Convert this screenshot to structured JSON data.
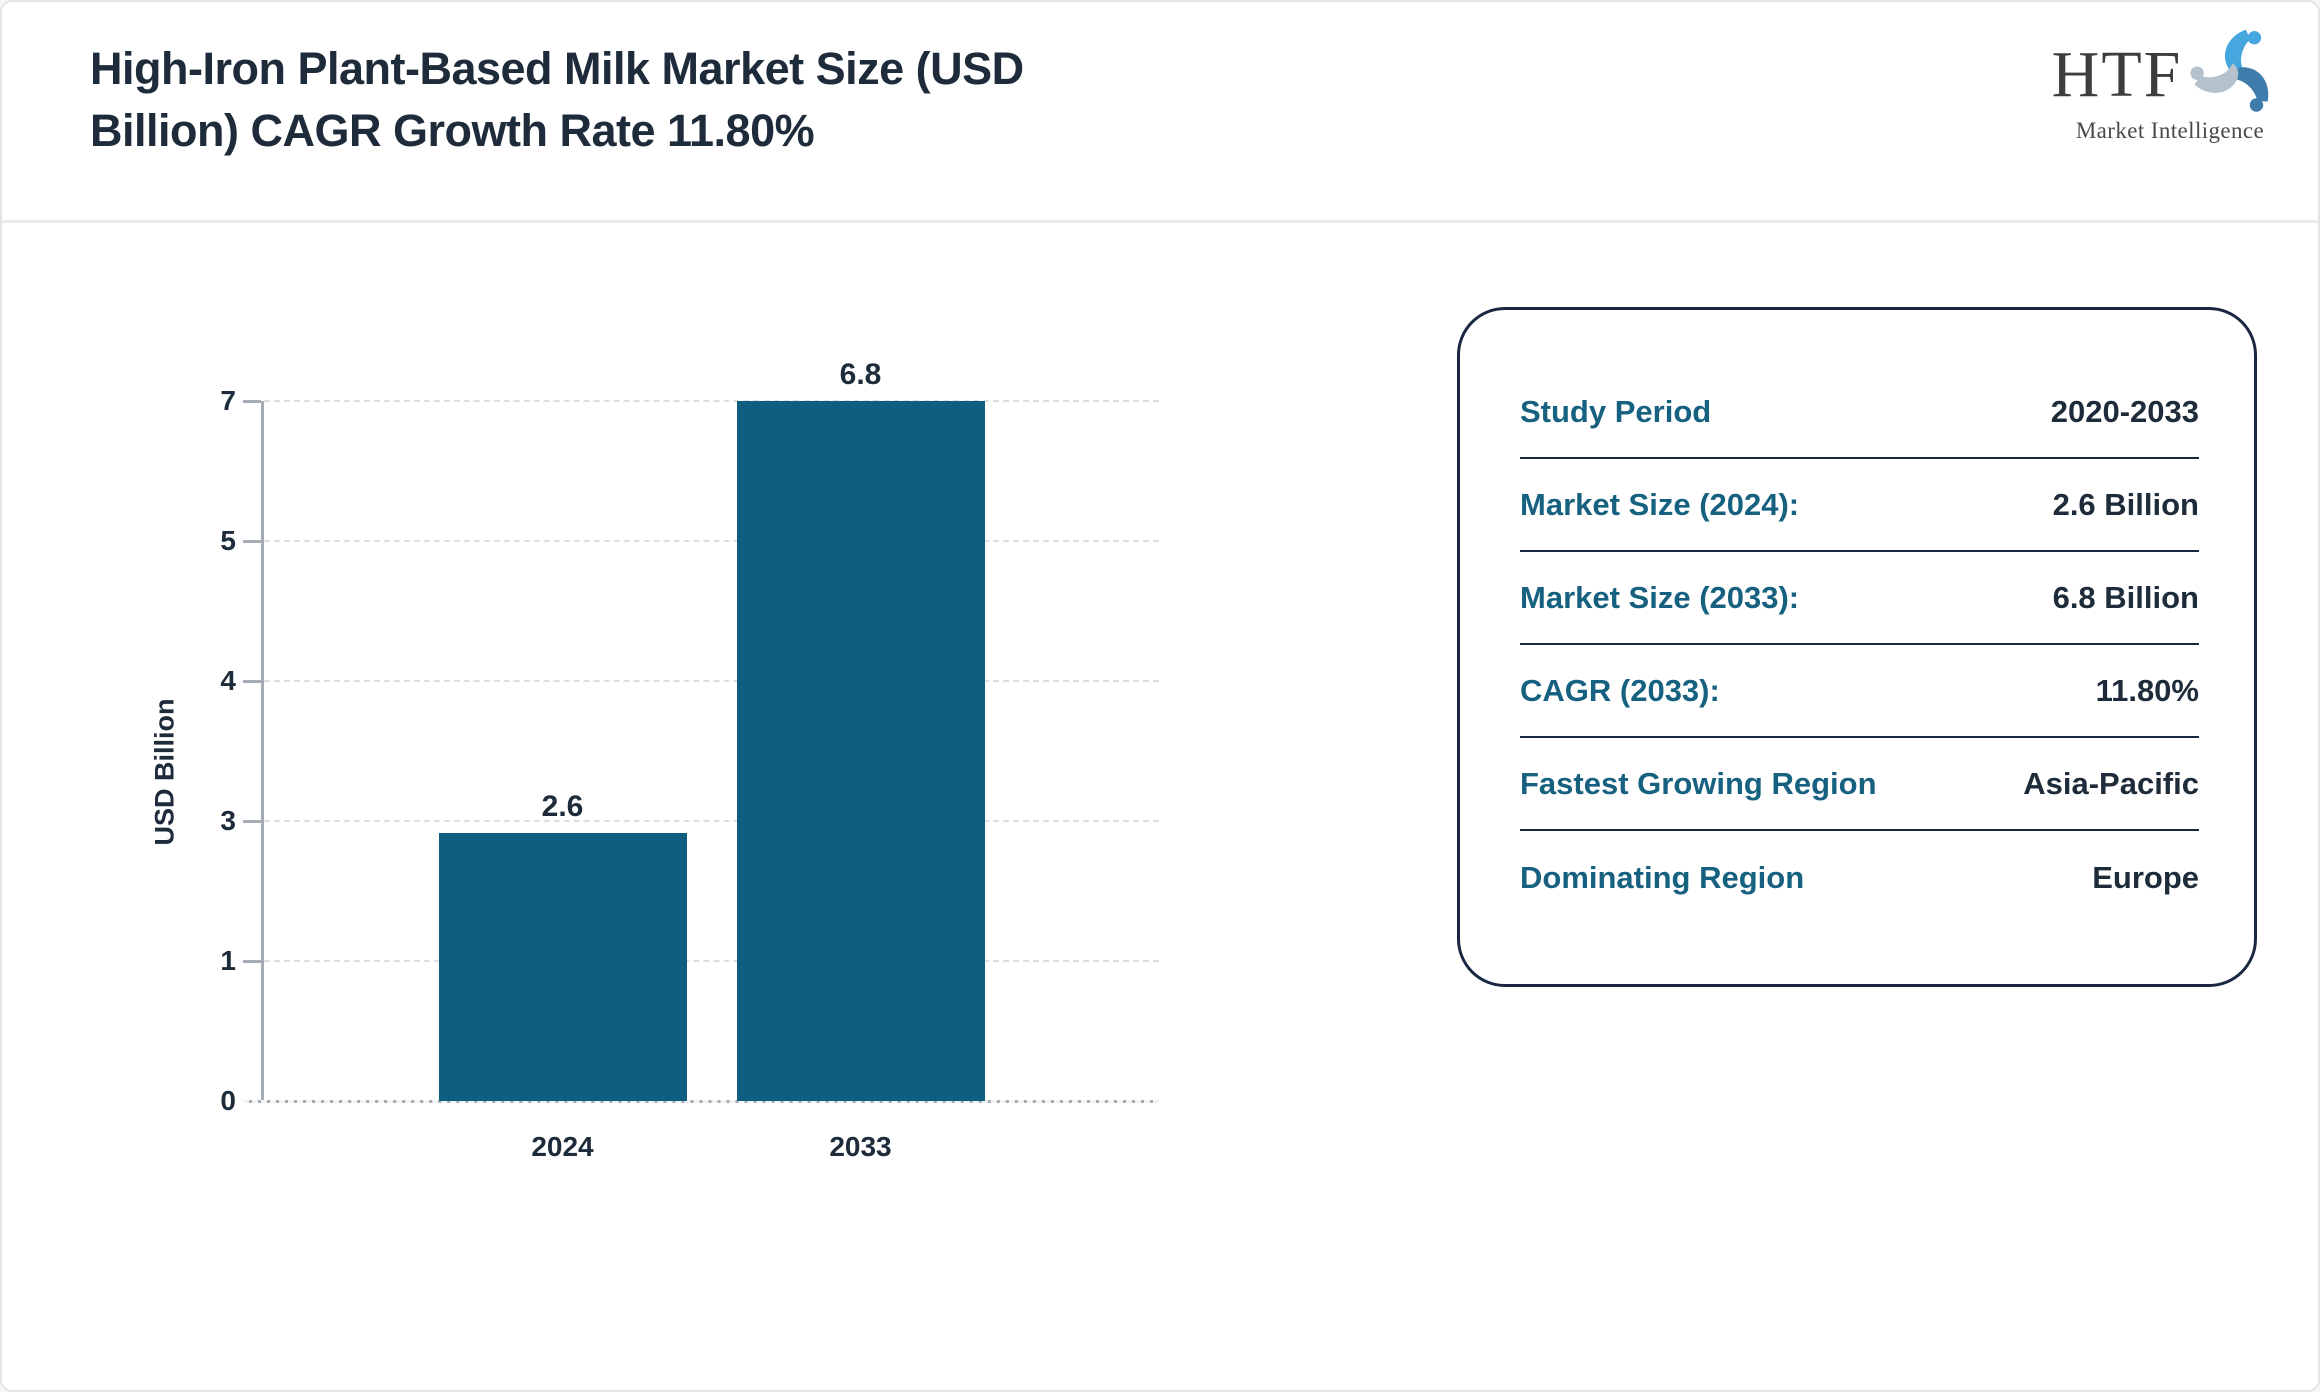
{
  "header": {
    "title": "High-Iron Plant-Based Milk Market Size (USD\nBillion) CAGR Growth Rate 11.80%",
    "logo": {
      "name": "HTF",
      "tagline": "Market Intelligence"
    }
  },
  "chart_data": {
    "type": "bar",
    "title": "High-Iron Plant-Based Milk Market Size (USD Billion) CAGR Growth Rate 11.80%",
    "categories": [
      "2024",
      "2033"
    ],
    "values": [
      2.6,
      6.8
    ],
    "bar_labels": [
      "2.6",
      "6.8"
    ],
    "xlabel": "",
    "ylabel": "USD Billion",
    "yticks": [
      0,
      1,
      3,
      4,
      5,
      7
    ],
    "ylim": [
      0,
      7
    ],
    "grid": "horizontal-dashed",
    "legend": "none",
    "bar_color": "#0f5e80"
  },
  "info_panel": {
    "rows": [
      {
        "label": "Study Period",
        "value": "2020-2033"
      },
      {
        "label": "Market Size (2024):",
        "value": "2.6 Billion"
      },
      {
        "label": "Market Size (2033):",
        "value": "6.8 Billion"
      },
      {
        "label": "CAGR (2033):",
        "value": "11.80%"
      },
      {
        "label": "Fastest Growing Region",
        "value": "Asia-Pacific"
      },
      {
        "label": "Dominating Region",
        "value": "Europe"
      }
    ]
  },
  "colors": {
    "navy_text": "#1e2b3a",
    "teal_label": "#176180",
    "bar_fill": "#0f5e80",
    "axis_gray": "#a6acb5",
    "gridline": "#dcdee2",
    "panel_border": "#1a2742",
    "logo_blue_light": "#45a7dd",
    "logo_blue_steel": "#3d7cab",
    "logo_gray": "#b5c1cc"
  }
}
